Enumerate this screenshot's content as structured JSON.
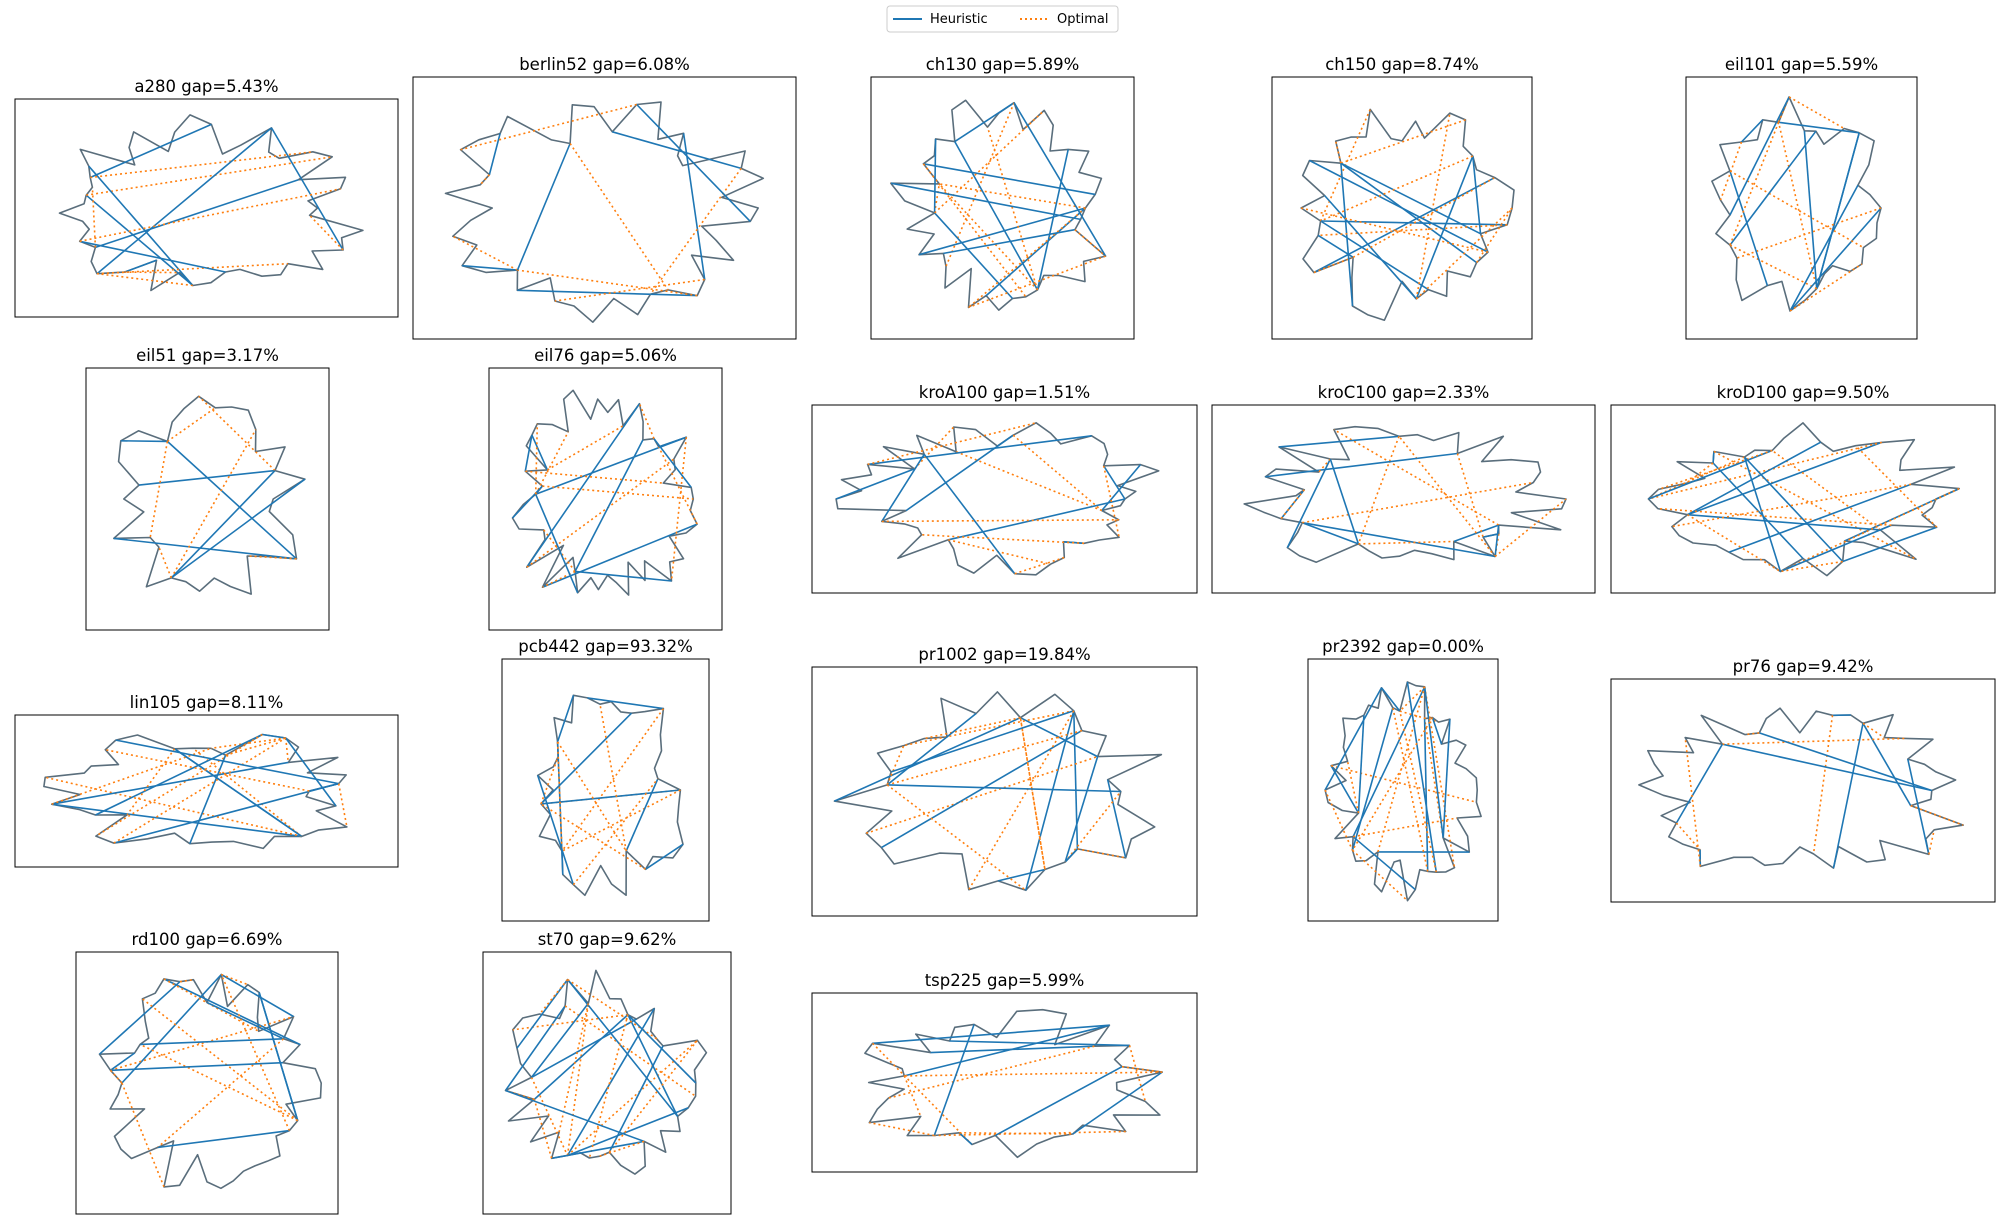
{
  "legend": {
    "placement": "top-center",
    "items": [
      {
        "label": "Heuristic",
        "color": "#1f77b4",
        "style": "solid"
      },
      {
        "label": "Optimal",
        "color": "#ff7f0e",
        "style": "dotted"
      }
    ]
  },
  "chart_data": [
    {
      "type": "line",
      "title": "a280 gap=5.43%",
      "instance": "a280",
      "gap_percent": 5.43,
      "series": [
        {
          "name": "Heuristic"
        },
        {
          "name": "Optimal"
        }
      ]
    },
    {
      "type": "line",
      "title": "berlin52 gap=6.08%",
      "instance": "berlin52",
      "gap_percent": 6.08,
      "series": [
        {
          "name": "Heuristic"
        },
        {
          "name": "Optimal"
        }
      ]
    },
    {
      "type": "line",
      "title": "ch130 gap=5.89%",
      "instance": "ch130",
      "gap_percent": 5.89,
      "series": [
        {
          "name": "Heuristic"
        },
        {
          "name": "Optimal"
        }
      ]
    },
    {
      "type": "line",
      "title": "ch150 gap=8.74%",
      "instance": "ch150",
      "gap_percent": 8.74,
      "series": [
        {
          "name": "Heuristic"
        },
        {
          "name": "Optimal"
        }
      ]
    },
    {
      "type": "line",
      "title": "eil101 gap=5.59%",
      "instance": "eil101",
      "gap_percent": 5.59,
      "series": [
        {
          "name": "Heuristic"
        },
        {
          "name": "Optimal"
        }
      ]
    },
    {
      "type": "line",
      "title": "eil51 gap=3.17%",
      "instance": "eil51",
      "gap_percent": 3.17,
      "series": [
        {
          "name": "Heuristic"
        },
        {
          "name": "Optimal"
        }
      ]
    },
    {
      "type": "line",
      "title": "eil76 gap=5.06%",
      "instance": "eil76",
      "gap_percent": 5.06,
      "series": [
        {
          "name": "Heuristic"
        },
        {
          "name": "Optimal"
        }
      ]
    },
    {
      "type": "line",
      "title": "kroA100 gap=1.51%",
      "instance": "kroA100",
      "gap_percent": 1.51,
      "series": [
        {
          "name": "Heuristic"
        },
        {
          "name": "Optimal"
        }
      ]
    },
    {
      "type": "line",
      "title": "kroC100 gap=2.33%",
      "instance": "kroC100",
      "gap_percent": 2.33,
      "series": [
        {
          "name": "Heuristic"
        },
        {
          "name": "Optimal"
        }
      ]
    },
    {
      "type": "line",
      "title": "kroD100 gap=9.50%",
      "instance": "kroD100",
      "gap_percent": 9.5,
      "series": [
        {
          "name": "Heuristic"
        },
        {
          "name": "Optimal"
        }
      ]
    },
    {
      "type": "line",
      "title": "lin105 gap=8.11%",
      "instance": "lin105",
      "gap_percent": 8.11,
      "series": [
        {
          "name": "Heuristic"
        },
        {
          "name": "Optimal"
        }
      ]
    },
    {
      "type": "line",
      "title": "pcb442 gap=93.32%",
      "instance": "pcb442",
      "gap_percent": 93.32,
      "series": [
        {
          "name": "Heuristic"
        },
        {
          "name": "Optimal"
        }
      ]
    },
    {
      "type": "line",
      "title": "pr1002 gap=19.84%",
      "instance": "pr1002",
      "gap_percent": 19.84,
      "series": [
        {
          "name": "Heuristic"
        },
        {
          "name": "Optimal"
        }
      ]
    },
    {
      "type": "line",
      "title": "pr2392 gap=0.00%",
      "instance": "pr2392",
      "gap_percent": 0.0,
      "series": [
        {
          "name": "Heuristic"
        },
        {
          "name": "Optimal"
        }
      ]
    },
    {
      "type": "line",
      "title": "pr76 gap=9.42%",
      "instance": "pr76",
      "gap_percent": 9.42,
      "series": [
        {
          "name": "Heuristic"
        },
        {
          "name": "Optimal"
        }
      ]
    },
    {
      "type": "line",
      "title": "rd100 gap=6.69%",
      "instance": "rd100",
      "gap_percent": 6.69,
      "series": [
        {
          "name": "Heuristic"
        },
        {
          "name": "Optimal"
        }
      ]
    },
    {
      "type": "line",
      "title": "st70 gap=9.62%",
      "instance": "st70",
      "gap_percent": 9.62,
      "series": [
        {
          "name": "Heuristic"
        },
        {
          "name": "Optimal"
        }
      ]
    },
    {
      "type": "line",
      "title": "tsp225 gap=5.99%",
      "instance": "tsp225",
      "gap_percent": 5.99,
      "series": [
        {
          "name": "Heuristic"
        },
        {
          "name": "Optimal"
        }
      ]
    }
  ]
}
